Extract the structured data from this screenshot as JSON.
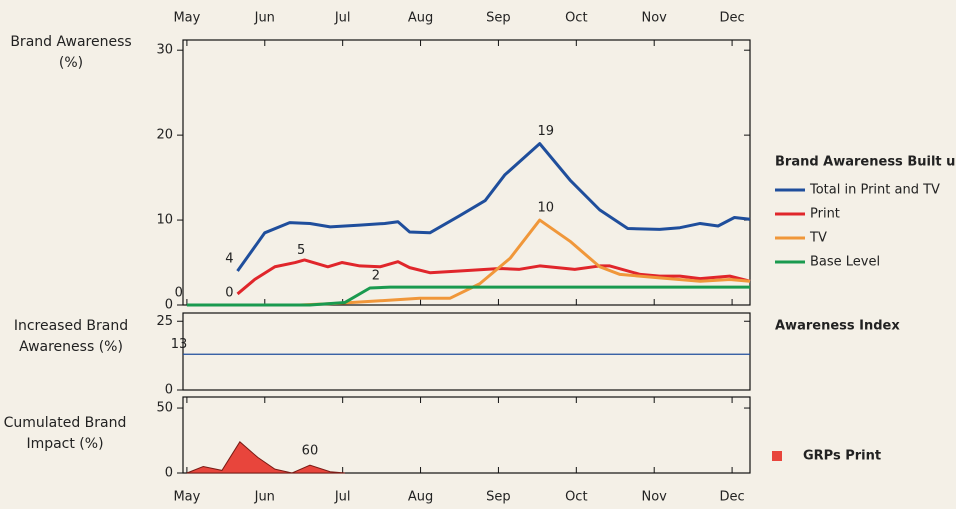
{
  "chart_data": [
    {
      "type": "line",
      "title": "Brand Awareness Built up",
      "ylabel": "Brand Awareness (%)",
      "xlim": [
        -0.05,
        7.23
      ],
      "xticks": [
        {
          "value": 0,
          "label": "May"
        },
        {
          "value": 1,
          "label": "Jun"
        },
        {
          "value": 2,
          "label": "Jul"
        },
        {
          "value": 3,
          "label": "Aug"
        },
        {
          "value": 4,
          "label": "Sep"
        },
        {
          "value": 5,
          "label": "Oct"
        },
        {
          "value": 6,
          "label": "Nov"
        },
        {
          "value": 7,
          "label": "Dec"
        }
      ],
      "ylim": [
        0,
        31.2
      ],
      "yticks": [
        0,
        10,
        20,
        30
      ],
      "series": [
        {
          "name": "Total in Print and TV",
          "color": "#1f4e9c",
          "x": [
            0.65,
            1.0,
            1.32,
            1.58,
            1.84,
            2.22,
            2.54,
            2.71,
            2.86,
            3.12,
            3.5,
            3.83,
            4.08,
            4.53,
            4.92,
            5.3,
            5.66,
            6.07,
            6.33,
            6.59,
            6.82,
            7.03,
            7.23
          ],
          "values": [
            4,
            8.5,
            9.7,
            9.6,
            9.2,
            9.4,
            9.6,
            9.8,
            8.6,
            8.5,
            10.5,
            12.3,
            15.3,
            19,
            14.7,
            11.2,
            9,
            8.9,
            9.1,
            9.6,
            9.3,
            10.3,
            10.1
          ],
          "value_labels": [
            "4",
            null,
            null,
            null,
            null,
            null,
            null,
            null,
            null,
            null,
            null,
            null,
            null,
            "19",
            null,
            null,
            null,
            null,
            null,
            null,
            null,
            null,
            null
          ]
        },
        {
          "name": "Print",
          "color": "#e0262b",
          "x": [
            0.65,
            0.87,
            1.13,
            1.39,
            1.51,
            1.81,
            1.99,
            2.22,
            2.48,
            2.71,
            2.86,
            3.12,
            3.5,
            4.02,
            4.27,
            4.53,
            4.98,
            5.3,
            5.43,
            5.82,
            6.07,
            6.33,
            6.59,
            6.97,
            7.23
          ],
          "values": [
            1.3,
            3,
            4.5,
            5,
            5.3,
            4.5,
            5,
            4.6,
            4.5,
            5.1,
            4.4,
            3.8,
            4,
            4.3,
            4.2,
            4.6,
            4.2,
            4.6,
            4.6,
            3.6,
            3.4,
            3.4,
            3.1,
            3.4,
            2.8
          ],
          "value_labels": [
            null,
            null,
            null,
            "5",
            null,
            null,
            null,
            null,
            null,
            null,
            null,
            null,
            null,
            null,
            null,
            null,
            null,
            null,
            null,
            null,
            null,
            null,
            null,
            null,
            null
          ]
        },
        {
          "name": "TV",
          "color": "#f0973a",
          "x": [
            0.65,
            1.45,
            1.96,
            2.48,
            2.99,
            3.38,
            3.76,
            4.15,
            4.53,
            4.92,
            5.3,
            5.56,
            6.07,
            6.59,
            6.97,
            7.23
          ],
          "values": [
            0,
            0,
            0.2,
            0.5,
            0.8,
            0.8,
            2.5,
            5.5,
            10,
            7.5,
            4.5,
            3.6,
            3.2,
            2.8,
            3,
            2.8
          ],
          "value_labels": [
            "0",
            null,
            null,
            null,
            null,
            null,
            null,
            null,
            "10",
            null,
            null,
            null,
            null,
            null,
            null,
            null
          ]
        },
        {
          "name": "Base Level",
          "color": "#1a9a4f",
          "label_color": "#222222",
          "x": [
            0,
            1.58,
            2.03,
            2.35,
            2.61,
            7.23
          ],
          "values": [
            0,
            0,
            0.3,
            2,
            2.1,
            2.1
          ],
          "value_labels": [
            "0",
            null,
            null,
            "2",
            null,
            null
          ]
        }
      ]
    },
    {
      "type": "line",
      "title": "Awareness Index",
      "ylabel": "Increased Brand Awareness (%)",
      "xlim": [
        -0.05,
        7.23
      ],
      "ylim": [
        0,
        28
      ],
      "yticks": [
        0,
        25
      ],
      "series": [
        {
          "color": "#1f4e9c",
          "x": [
            -0.05,
            7.23
          ],
          "values": [
            13,
            13
          ],
          "value_labels": [
            "13",
            null
          ]
        }
      ]
    },
    {
      "type": "area",
      "ylabel": "Cumulated Brand Impact (%)",
      "annotation": "60",
      "xlim": [
        -0.05,
        7.23
      ],
      "xticks": [
        {
          "value": 0,
          "label": "May"
        },
        {
          "value": 1,
          "label": "Jun"
        },
        {
          "value": 2,
          "label": "Jul"
        },
        {
          "value": 3,
          "label": "Aug"
        },
        {
          "value": 4,
          "label": "Sep"
        },
        {
          "value": 5,
          "label": "Oct"
        },
        {
          "value": 6,
          "label": "Nov"
        },
        {
          "value": 7,
          "label": "Dec"
        }
      ],
      "ylim": [
        0,
        58.5
      ],
      "yticks": [
        0,
        50
      ],
      "series": [
        {
          "name": "GRPs Print",
          "color": "#e8453c",
          "x": [
            0,
            0.21,
            0.45,
            0.68,
            0.91,
            1.13,
            1.35,
            1.58,
            1.84,
            2.03
          ],
          "values": [
            0,
            5,
            2,
            24,
            12,
            3,
            0,
            6,
            1,
            0
          ]
        }
      ]
    }
  ]
}
